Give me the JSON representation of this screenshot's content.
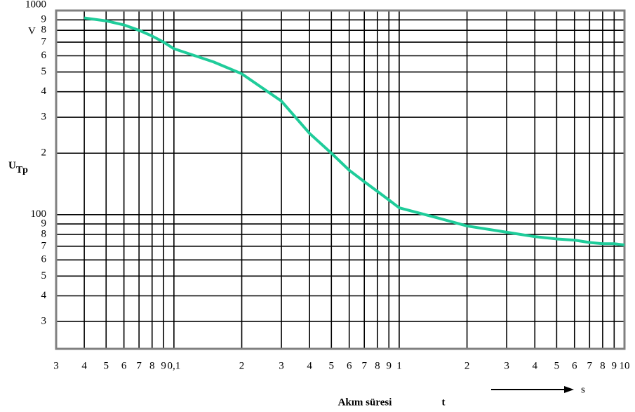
{
  "chart_data": {
    "type": "line",
    "x_label": "Akım süresi",
    "x_symbol": "t",
    "x_unit": "s",
    "y_label_main": "U",
    "y_label_sub": "Tp",
    "y_unit": "V",
    "xscale": "log",
    "yscale": "log",
    "grid": true,
    "xlim": [
      0.03,
      10
    ],
    "ylim": [
      22,
      1000
    ],
    "xticks": [
      {
        "value": 0.03,
        "label": "3"
      },
      {
        "value": 0.04,
        "label": "4"
      },
      {
        "value": 0.05,
        "label": "5"
      },
      {
        "value": 0.06,
        "label": "6"
      },
      {
        "value": 0.07,
        "label": "7"
      },
      {
        "value": 0.08,
        "label": "8"
      },
      {
        "value": 0.09,
        "label": "9"
      },
      {
        "value": 0.1,
        "label": "0,1"
      },
      {
        "value": 0.2,
        "label": "2"
      },
      {
        "value": 0.3,
        "label": "3"
      },
      {
        "value": 0.4,
        "label": "4"
      },
      {
        "value": 0.5,
        "label": "5"
      },
      {
        "value": 0.6,
        "label": "6"
      },
      {
        "value": 0.7,
        "label": "7"
      },
      {
        "value": 0.8,
        "label": "8"
      },
      {
        "value": 0.9,
        "label": "9"
      },
      1,
      {
        "value": 2,
        "label": "2"
      },
      {
        "value": 3,
        "label": "3"
      },
      {
        "value": 4,
        "label": "4"
      },
      {
        "value": 5,
        "label": "5"
      },
      {
        "value": 6,
        "label": "6"
      },
      {
        "value": 7,
        "label": "7"
      },
      {
        "value": 8,
        "label": "8"
      },
      {
        "value": 9,
        "label": "9"
      },
      10
    ],
    "yticks": [
      {
        "value": 30,
        "label": "3"
      },
      {
        "value": 40,
        "label": "4"
      },
      {
        "value": 50,
        "label": "5"
      },
      {
        "value": 60,
        "label": "6"
      },
      {
        "value": 70,
        "label": "7"
      },
      {
        "value": 80,
        "label": "8"
      },
      {
        "value": 90,
        "label": "9"
      },
      100,
      {
        "value": 200,
        "label": "2"
      },
      {
        "value": 300,
        "label": "3"
      },
      {
        "value": 400,
        "label": "4"
      },
      {
        "value": 500,
        "label": "5"
      },
      {
        "value": 600,
        "label": "6"
      },
      {
        "value": 700,
        "label": "7"
      },
      {
        "value": 800,
        "label": "8"
      },
      {
        "value": 900,
        "label": "9"
      },
      1000
    ],
    "x": [
      0.04,
      0.05,
      0.06,
      0.07,
      0.08,
      0.09,
      0.1,
      0.15,
      0.2,
      0.3,
      0.4,
      0.5,
      0.6,
      0.7,
      0.8,
      0.9,
      1,
      1.5,
      2,
      3,
      4,
      5,
      6,
      7,
      8,
      9,
      10
    ],
    "series": [
      {
        "color": "#1fcc9a",
        "values": [
          920,
          890,
          850,
          800,
          750,
          700,
          650,
          560,
          490,
          360,
          250,
          200,
          165,
          145,
          130,
          118,
          108,
          96,
          88,
          82,
          78,
          76,
          75,
          73,
          72,
          72,
          71
        ]
      }
    ]
  }
}
